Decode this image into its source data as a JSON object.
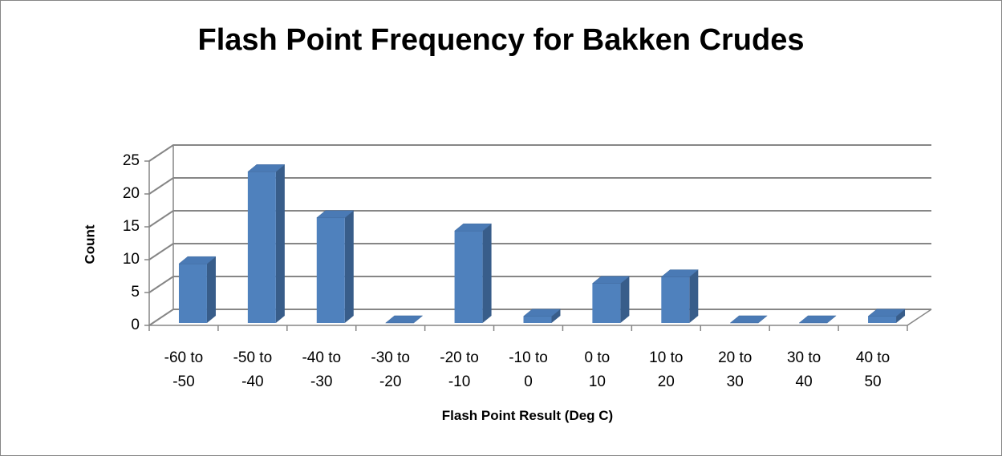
{
  "chart_data": {
    "type": "bar",
    "title": "Flash Point Frequency for Bakken Crudes",
    "x_label": "Flash Point Result (Deg C)",
    "y_label": "Count",
    "categories": [
      "-60 to -50",
      "-50 to -40",
      "-40 to -30",
      "-30 to -20",
      "-20 to -10",
      "-10 to 0",
      "0 to 10",
      "10 to 20",
      "20 to 30",
      "30 to 40",
      "40 to 50"
    ],
    "values": [
      9,
      23,
      16,
      0,
      14,
      1,
      6,
      7,
      0,
      0,
      1
    ],
    "color": "#4f81bd",
    "ylim": [
      0,
      25
    ],
    "yticks": [
      0,
      5,
      10,
      15,
      20,
      25
    ],
    "grid": true
  }
}
